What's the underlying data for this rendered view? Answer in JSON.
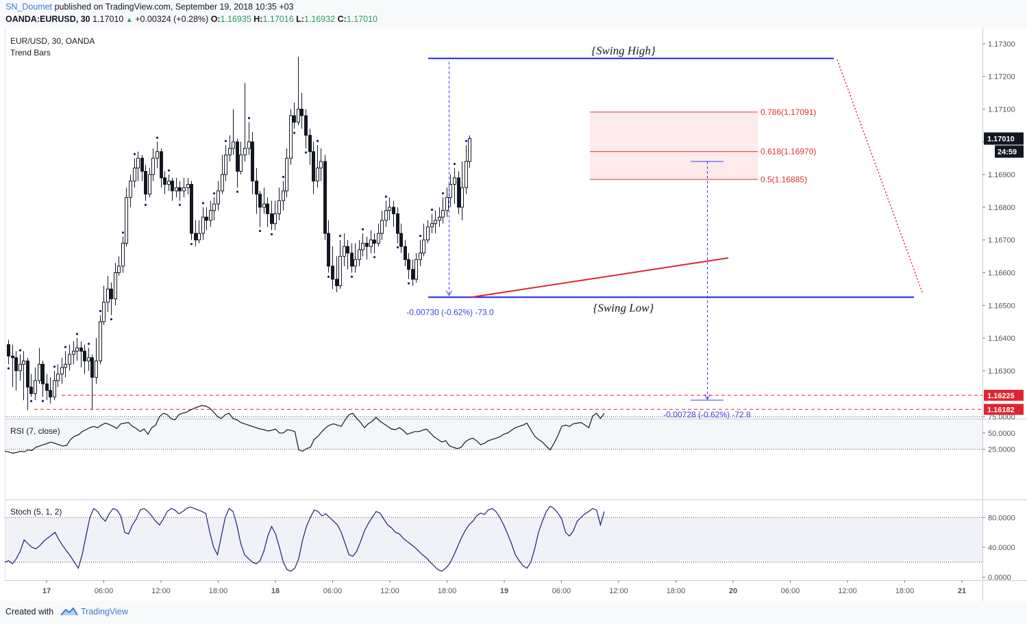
{
  "header": {
    "author": "SN_Doumet",
    "published": "published on TradingView.com, September 19, 2018 10:35 +03",
    "symbol": "OANDA:EURUSD, 30",
    "last": "1.17010",
    "change": "+0.00324 (+0.28%)",
    "open_label": "O:",
    "open": "1.16935",
    "high_label": "H:",
    "high": "1.17016",
    "low_label": "L:",
    "low": "1.16932",
    "close_label": "C:",
    "close": "1.17010"
  },
  "chart_data": [
    {
      "type": "candlestick",
      "title": "EUR/USD, 30, OANDA",
      "subtitle": "Trend Bars",
      "ylim": [
        1.1615,
        1.1735
      ],
      "yticks": [
        "1.17300",
        "1.17200",
        "1.17100",
        "1.17000",
        "1.16900",
        "1.16800",
        "1.16700",
        "1.16600",
        "1.16500",
        "1.16400",
        "1.16300"
      ],
      "xticks": [
        "17",
        "06:00",
        "12:00",
        "18:00",
        "18",
        "06:00",
        "12:00",
        "18:00",
        "19",
        "06:00",
        "12:00",
        "18:00",
        "20",
        "06:00",
        "12:00",
        "18:00",
        "21"
      ],
      "price_tag": {
        "value": "1.17010",
        "countdown": "24:59",
        "color": "#131722"
      },
      "level_tags": [
        {
          "value": "1.16225",
          "color": "#e0242f"
        },
        {
          "value": "1.16182",
          "color": "#e0242f"
        }
      ],
      "candles": [
        [
          1.1638,
          1.16345,
          1.16395,
          1.1632
        ],
        [
          1.16345,
          1.1634,
          1.1638,
          1.1625
        ],
        [
          1.1634,
          1.163,
          1.1636,
          1.1624
        ],
        [
          1.163,
          1.1632,
          1.1635,
          1.1627
        ],
        [
          1.1632,
          1.1633,
          1.1636,
          1.1621
        ],
        [
          1.1633,
          1.1625,
          1.1634,
          1.1618
        ],
        [
          1.1625,
          1.1623,
          1.1629,
          1.1622
        ],
        [
          1.1623,
          1.1627,
          1.1631,
          1.1621
        ],
        [
          1.1627,
          1.1632,
          1.1637,
          1.1626
        ],
        [
          1.1632,
          1.1626,
          1.1633,
          1.1622
        ],
        [
          1.1626,
          1.1624,
          1.1629,
          1.1621
        ],
        [
          1.1624,
          1.1622,
          1.1628,
          1.162
        ],
        [
          1.1622,
          1.1627,
          1.163,
          1.1621
        ],
        [
          1.1627,
          1.1629,
          1.1632,
          1.1625
        ],
        [
          1.1629,
          1.1631,
          1.1634,
          1.1626
        ],
        [
          1.1631,
          1.1632,
          1.1636,
          1.1628
        ],
        [
          1.1632,
          1.1635,
          1.1638,
          1.163
        ],
        [
          1.1635,
          1.1636,
          1.1639,
          1.1632
        ],
        [
          1.1636,
          1.1637,
          1.164,
          1.1633
        ],
        [
          1.1637,
          1.1636,
          1.1639,
          1.1631
        ],
        [
          1.1636,
          1.1633,
          1.1638,
          1.1629
        ],
        [
          1.1633,
          1.1634,
          1.1637,
          1.163
        ],
        [
          1.1634,
          1.1628,
          1.1635,
          1.1618
        ],
        [
          1.1628,
          1.1633,
          1.164,
          1.1626
        ],
        [
          1.1633,
          1.1645,
          1.1647,
          1.1632
        ],
        [
          1.1645,
          1.1651,
          1.1656,
          1.1644
        ],
        [
          1.1651,
          1.1655,
          1.1659,
          1.1648
        ],
        [
          1.1655,
          1.1652,
          1.1657,
          1.1647
        ],
        [
          1.1652,
          1.166,
          1.1663,
          1.165
        ],
        [
          1.166,
          1.1662,
          1.1665,
          1.1659
        ],
        [
          1.1662,
          1.1669,
          1.1671,
          1.166
        ],
        [
          1.1669,
          1.1683,
          1.1686,
          1.1668
        ],
        [
          1.1683,
          1.1688,
          1.169,
          1.168
        ],
        [
          1.1688,
          1.1692,
          1.1695,
          1.1686
        ],
        [
          1.1692,
          1.1695,
          1.1697,
          1.1688
        ],
        [
          1.1695,
          1.1691,
          1.1696,
          1.1688
        ],
        [
          1.1691,
          1.1684,
          1.1693,
          1.1682
        ],
        [
          1.1684,
          1.169,
          1.1692,
          1.1683
        ],
        [
          1.169,
          1.1695,
          1.1698,
          1.1688
        ],
        [
          1.1695,
          1.1697,
          1.17,
          1.1692
        ],
        [
          1.1697,
          1.1689,
          1.1698,
          1.1686
        ],
        [
          1.1689,
          1.1687,
          1.1691,
          1.1684
        ],
        [
          1.1687,
          1.1688,
          1.169,
          1.1685
        ],
        [
          1.1688,
          1.1685,
          1.1689,
          1.1682
        ],
        [
          1.1685,
          1.1686,
          1.1689,
          1.1683
        ],
        [
          1.1686,
          1.1685,
          1.1688,
          1.1682
        ],
        [
          1.1685,
          1.1686,
          1.1689,
          1.1683
        ],
        [
          1.1686,
          1.1687,
          1.1689,
          1.1684
        ],
        [
          1.1687,
          1.1672,
          1.1688,
          1.167
        ],
        [
          1.1672,
          1.167,
          1.1676,
          1.1668
        ],
        [
          1.167,
          1.1672,
          1.1676,
          1.1669
        ],
        [
          1.1672,
          1.1677,
          1.168,
          1.167
        ],
        [
          1.1677,
          1.1676,
          1.168,
          1.1673
        ],
        [
          1.1676,
          1.1679,
          1.1682,
          1.1674
        ],
        [
          1.1679,
          1.1681,
          1.1683,
          1.1676
        ],
        [
          1.1681,
          1.1685,
          1.1688,
          1.1679
        ],
        [
          1.1685,
          1.169,
          1.1696,
          1.1684
        ],
        [
          1.169,
          1.1696,
          1.1699,
          1.1688
        ],
        [
          1.1696,
          1.1698,
          1.1702,
          1.1694
        ],
        [
          1.1698,
          1.17,
          1.171,
          1.1696
        ],
        [
          1.17,
          1.1691,
          1.1701,
          1.1686
        ],
        [
          1.1691,
          1.1696,
          1.17,
          1.169
        ],
        [
          1.1696,
          1.1698,
          1.1718,
          1.1694
        ],
        [
          1.1698,
          1.17,
          1.1706,
          1.1696
        ],
        [
          1.17,
          1.1688,
          1.1703,
          1.1684
        ],
        [
          1.1688,
          1.1684,
          1.1692,
          1.1678
        ],
        [
          1.1684,
          1.168,
          1.1685,
          1.1674
        ],
        [
          1.168,
          1.1681,
          1.1686,
          1.1678
        ],
        [
          1.1681,
          1.1678,
          1.1683,
          1.1674
        ],
        [
          1.1678,
          1.1675,
          1.1682,
          1.1673
        ],
        [
          1.1675,
          1.1678,
          1.1682,
          1.1673
        ],
        [
          1.1678,
          1.1682,
          1.1686,
          1.1676
        ],
        [
          1.1682,
          1.1685,
          1.1688,
          1.1679
        ],
        [
          1.1685,
          1.1695,
          1.1698,
          1.1683
        ],
        [
          1.1695,
          1.1708,
          1.171,
          1.1693
        ],
        [
          1.1708,
          1.1706,
          1.1712,
          1.1704
        ],
        [
          1.1706,
          1.171,
          1.1726,
          1.1705
        ],
        [
          1.171,
          1.1708,
          1.1715,
          1.1704
        ],
        [
          1.1708,
          1.1702,
          1.171,
          1.1698
        ],
        [
          1.1702,
          1.1697,
          1.1704,
          1.1693
        ],
        [
          1.1697,
          1.1688,
          1.17,
          1.1684
        ],
        [
          1.1688,
          1.1692,
          1.1699,
          1.1686
        ],
        [
          1.1692,
          1.1694,
          1.1698,
          1.1688
        ],
        [
          1.1694,
          1.1672,
          1.1696,
          1.167
        ],
        [
          1.1672,
          1.1662,
          1.1676,
          1.166
        ],
        [
          1.1662,
          1.1658,
          1.1668,
          1.1655
        ],
        [
          1.1658,
          1.1656,
          1.1665,
          1.1654
        ],
        [
          1.1656,
          1.1665,
          1.167,
          1.1655
        ],
        [
          1.1665,
          1.1668,
          1.1672,
          1.1662
        ],
        [
          1.1668,
          1.1666,
          1.167,
          1.1661
        ],
        [
          1.1666,
          1.1662,
          1.1669,
          1.166
        ],
        [
          1.1662,
          1.1664,
          1.1669,
          1.166
        ],
        [
          1.1664,
          1.1667,
          1.167,
          1.1662
        ],
        [
          1.1667,
          1.1669,
          1.1672,
          1.1665
        ],
        [
          1.1669,
          1.1668,
          1.1671,
          1.1664
        ],
        [
          1.1668,
          1.167,
          1.1673,
          1.1666
        ],
        [
          1.167,
          1.1669,
          1.1672,
          1.1666
        ],
        [
          1.1669,
          1.1672,
          1.1675,
          1.1668
        ],
        [
          1.1672,
          1.1676,
          1.1679,
          1.167
        ],
        [
          1.1676,
          1.1679,
          1.1682,
          1.1674
        ],
        [
          1.1679,
          1.168,
          1.1683,
          1.1676
        ],
        [
          1.168,
          1.1678,
          1.1682,
          1.1674
        ],
        [
          1.1678,
          1.1672,
          1.168,
          1.1669
        ],
        [
          1.1672,
          1.1668,
          1.1675,
          1.1666
        ],
        [
          1.1668,
          1.1664,
          1.167,
          1.1662
        ],
        [
          1.1664,
          1.1661,
          1.1666,
          1.1658
        ],
        [
          1.1661,
          1.1658,
          1.1664,
          1.1656
        ],
        [
          1.1658,
          1.1664,
          1.1666,
          1.1657
        ],
        [
          1.1664,
          1.1666,
          1.167,
          1.1662
        ],
        [
          1.1666,
          1.167,
          1.1675,
          1.1665
        ],
        [
          1.167,
          1.1674,
          1.1676,
          1.1669
        ],
        [
          1.1674,
          1.1675,
          1.1678,
          1.1672
        ],
        [
          1.1675,
          1.1676,
          1.1679,
          1.1672
        ],
        [
          1.1676,
          1.1677,
          1.168,
          1.1674
        ],
        [
          1.1677,
          1.1679,
          1.1683,
          1.1675
        ],
        [
          1.1679,
          1.1683,
          1.1686,
          1.1677
        ],
        [
          1.1683,
          1.1687,
          1.169,
          1.168
        ],
        [
          1.1687,
          1.1689,
          1.1692,
          1.1681
        ],
        [
          1.1689,
          1.168,
          1.1691,
          1.1678
        ],
        [
          1.168,
          1.1686,
          1.1694,
          1.1676
        ],
        [
          1.1686,
          1.1694,
          1.1699,
          1.1684
        ],
        [
          1.1694,
          1.1701,
          1.1702,
          1.1692
        ]
      ],
      "annotations": {
        "swing_high": {
          "label": "{Swing High}",
          "price": 1.17255
        },
        "swing_low": {
          "label": "{Swing Low}",
          "price": 1.16525
        },
        "fib_levels": [
          {
            "label": "0.786(1.17091)",
            "price": 1.17091
          },
          {
            "label": "0.618(1.16970)",
            "price": 1.1697
          },
          {
            "label": "0.5(1.16885)",
            "price": 1.16885
          }
        ],
        "measure_1": "-0.00730 (-0.62%) -73.0",
        "measure_2": "-0.00728 (-0.62%) -72.8",
        "support_levels": [
          1.16225,
          1.16182
        ]
      }
    },
    {
      "type": "line",
      "title": "RSI (7, close)",
      "ylim": [
        15,
        100
      ],
      "yticks": [
        "75.0000",
        "50.0000",
        "25.0000"
      ],
      "levels": [
        75,
        25
      ],
      "series": [
        {
          "values": [
            22,
            21,
            19,
            20,
            22,
            21,
            24,
            23,
            28,
            30,
            32,
            34,
            36,
            34,
            32,
            30,
            31,
            40,
            45,
            47,
            52,
            55,
            58,
            60,
            58,
            62,
            65,
            63,
            60,
            57,
            64,
            65,
            66,
            60,
            57,
            52,
            56,
            48,
            58,
            62,
            75,
            80,
            78,
            72,
            70,
            78,
            80,
            82,
            85,
            88,
            90,
            92,
            91,
            88,
            82,
            75,
            72,
            78,
            80,
            72,
            70,
            66,
            64,
            62,
            60,
            58,
            56,
            55,
            53,
            54,
            56,
            50,
            50,
            55,
            54,
            52,
            24,
            22,
            26,
            28,
            40,
            45,
            52,
            58,
            62,
            64,
            62,
            60,
            70,
            78,
            80,
            72,
            66,
            58,
            64,
            68,
            74,
            68,
            64,
            60,
            56,
            55,
            58,
            54,
            48,
            50,
            52,
            52,
            54,
            56,
            50,
            44,
            40,
            36,
            38,
            30,
            28,
            26,
            28,
            36,
            40,
            42,
            38,
            32,
            34,
            38,
            40,
            42,
            44,
            48,
            50,
            54,
            58,
            60,
            62,
            65,
            55,
            45,
            40,
            36,
            30,
            24,
            34,
            46,
            60,
            62,
            60,
            64,
            65,
            66,
            62,
            58,
            76,
            80,
            72,
            80
          ],
          "color": "#131722"
        }
      ]
    },
    {
      "type": "line",
      "title": "Stoch (5, 1, 2)",
      "ylim": [
        -5,
        105
      ],
      "yticks": [
        "80.0000",
        "40.0000",
        "0.0000"
      ],
      "levels": [
        80,
        20
      ],
      "series": [
        {
          "values": [
            20,
            22,
            18,
            25,
            35,
            50,
            45,
            40,
            38,
            42,
            48,
            52,
            56,
            60,
            50,
            42,
            35,
            28,
            20,
            12,
            30,
            55,
            80,
            92,
            88,
            80,
            75,
            85,
            92,
            90,
            82,
            60,
            58,
            70,
            78,
            90,
            92,
            88,
            82,
            75,
            70,
            78,
            88,
            92,
            90,
            85,
            88,
            92,
            94,
            92,
            90,
            88,
            85,
            60,
            40,
            30,
            55,
            80,
            92,
            88,
            70,
            45,
            30,
            25,
            20,
            18,
            22,
            35,
            55,
            68,
            58,
            40,
            20,
            10,
            8,
            12,
            25,
            50,
            68,
            80,
            90,
            88,
            82,
            85,
            80,
            75,
            70,
            60,
            45,
            30,
            28,
            35,
            48,
            62,
            72,
            80,
            88,
            86,
            78,
            70,
            66,
            60,
            58,
            52,
            48,
            44,
            40,
            35,
            30,
            26,
            20,
            15,
            10,
            8,
            12,
            18,
            28,
            40,
            52,
            62,
            70,
            75,
            82,
            86,
            84,
            90,
            92,
            88,
            80,
            70,
            58,
            45,
            30,
            22,
            15,
            12,
            20,
            38,
            60,
            75,
            88,
            95,
            92,
            86,
            78,
            60,
            55,
            62,
            75,
            80,
            85,
            88,
            92,
            90,
            70,
            88
          ],
          "color": "#1e1e6e"
        }
      ]
    }
  ]
}
